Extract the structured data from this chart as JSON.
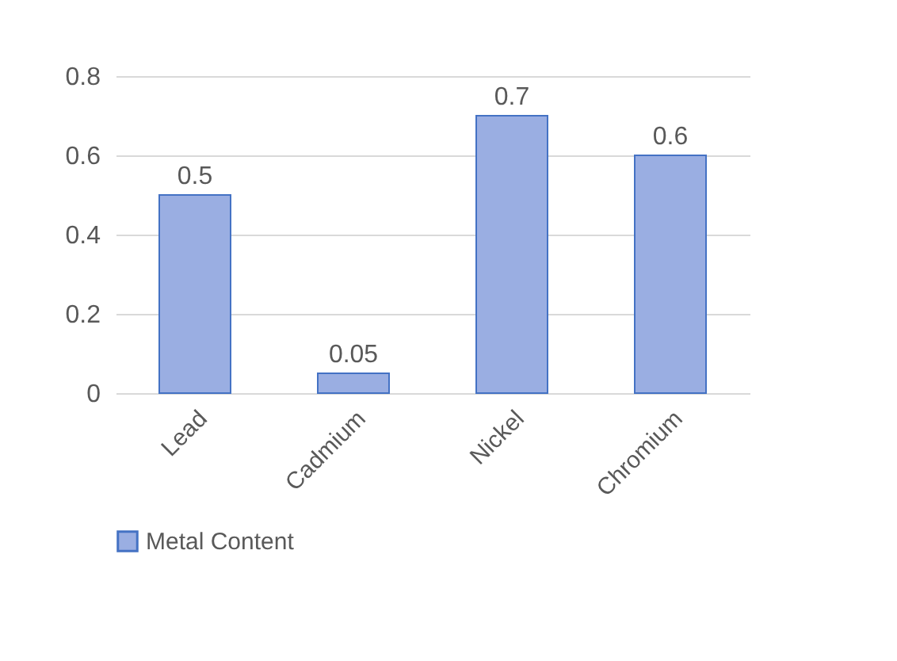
{
  "chart_data": {
    "type": "bar",
    "categories": [
      "Lead",
      "Cadmium",
      "Nickel",
      "Chromium"
    ],
    "series": [
      {
        "name": "Metal Content",
        "color": "#9aaee2",
        "values": [
          0.5,
          0.05,
          0.7,
          0.6
        ]
      }
    ],
    "ylim": [
      0,
      0.8
    ],
    "yticks": [
      0,
      0.2,
      0.4,
      0.6,
      0.8
    ],
    "grid": "y",
    "legend": "bottom",
    "data_labels": true
  }
}
